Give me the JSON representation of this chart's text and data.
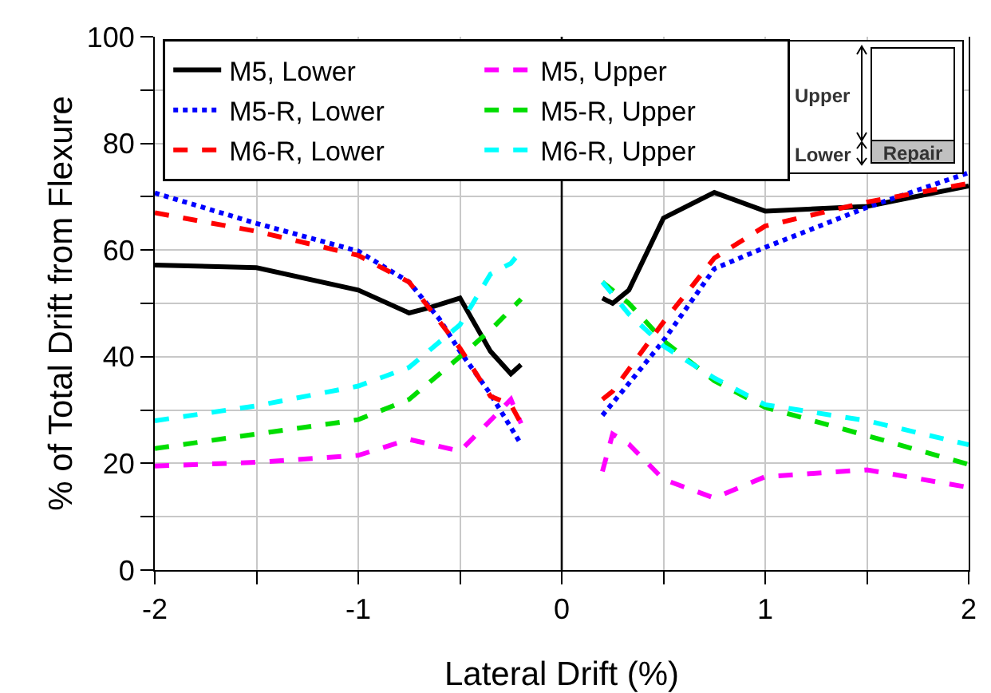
{
  "chart_data": {
    "type": "line",
    "xlabel": "Lateral Drift (%)",
    "ylabel": "% of Total Drift from Flexure",
    "xlim": [
      -2,
      2
    ],
    "xticks": [
      -2,
      {
        "value": -1.5,
        "label": null
      },
      -1,
      {
        "value": -0.5,
        "label": null
      },
      0,
      {
        "value": 0.5,
        "label": null
      },
      1,
      {
        "value": 1.5,
        "label": null
      },
      2
    ],
    "ylim": [
      0,
      100
    ],
    "yticks": [
      0,
      {
        "value": 10,
        "label": null
      },
      20,
      {
        "value": 30,
        "label": null
      },
      40,
      {
        "value": 50,
        "label": null
      },
      60,
      {
        "value": 70,
        "label": null
      },
      80,
      {
        "value": 90,
        "label": null
      },
      100
    ],
    "grid": true,
    "legend": "top left",
    "marker": "none",
    "ref_lines": [
      {
        "axis": "x",
        "value": 0,
        "color": "#000000"
      }
    ],
    "annotations": [
      "Upper",
      "Lower",
      "Repair"
    ],
    "series": [
      {
        "name": "M5, Lower",
        "color": "#000000",
        "line_style": "solid",
        "x": [
          -2,
          -1.5,
          -1,
          -0.75,
          -0.65,
          -0.5,
          -0.35,
          -0.25,
          -0.2,
          0,
          0.2,
          0.25,
          0.33,
          0.5,
          0.75,
          1,
          1.5,
          2
        ],
        "values": [
          57.2,
          56.7,
          52.5,
          48.2,
          49.2,
          51,
          41,
          36.8,
          38.5,
          null,
          51,
          50,
          52.5,
          66,
          70.8,
          67.3,
          68.2,
          72
        ]
      },
      {
        "name": "M5, Upper",
        "color": "#ff00ff",
        "line_style": "dashed",
        "x": [
          -2,
          -1.5,
          -1,
          -0.75,
          -0.5,
          -0.3,
          -0.25,
          -0.2,
          0,
          0.2,
          0.25,
          0.33,
          0.5,
          0.75,
          1,
          1.5,
          2
        ],
        "values": [
          19.5,
          20.2,
          21.5,
          24.5,
          22.3,
          30,
          32,
          27.5,
          null,
          18.5,
          25.5,
          23.6,
          17,
          13.5,
          17.5,
          18.8,
          15.5
        ]
      },
      {
        "name": "M5-R, Lower",
        "color": "#0000ff",
        "line_style": "dotted",
        "x": [
          -2,
          -1.5,
          -1,
          -0.75,
          -0.6,
          -0.5,
          -0.35,
          -0.2,
          0,
          0.2,
          0.33,
          0.5,
          0.75,
          1,
          1.5,
          2
        ],
        "values": [
          70.7,
          65,
          59.8,
          54,
          47,
          41,
          33,
          23.6,
          null,
          29,
          35,
          43,
          56.5,
          60.5,
          68,
          74.5
        ]
      },
      {
        "name": "M5-R, Upper",
        "color": "#00dd00",
        "line_style": "dashed",
        "x": [
          -2,
          -1.5,
          -1,
          -0.75,
          -0.5,
          -0.35,
          -0.2,
          0,
          0.2,
          0.33,
          0.5,
          0.75,
          1,
          1.5,
          2
        ],
        "values": [
          22.8,
          25.5,
          28.2,
          32,
          40,
          45,
          50.8,
          null,
          54,
          50,
          43,
          35.5,
          30.5,
          25.2,
          19.8
        ]
      },
      {
        "name": "M6-R, Lower",
        "color": "#ff0000",
        "line_style": "dashed",
        "x": [
          -2,
          -1.5,
          -1,
          -0.75,
          -0.5,
          -0.35,
          -0.25,
          -0.2,
          0,
          0.2,
          0.25,
          0.5,
          0.75,
          1,
          1.5,
          2
        ],
        "values": [
          67,
          63.5,
          59,
          54,
          41.6,
          32.6,
          31,
          27.5,
          null,
          32,
          33.5,
          46.5,
          58.5,
          64.5,
          69,
          72.5
        ]
      },
      {
        "name": "M6-R, Upper",
        "color": "#00ffff",
        "line_style": "dashed",
        "x": [
          -2,
          -1.5,
          -1,
          -0.75,
          -0.5,
          -0.35,
          -0.25,
          -0.2,
          0,
          0.2,
          0.33,
          0.5,
          0.75,
          1,
          1.5,
          2
        ],
        "values": [
          28,
          30.8,
          34.5,
          38,
          46,
          55.5,
          57.5,
          59.8,
          null,
          54,
          48,
          42,
          36,
          31,
          28,
          23.5
        ]
      }
    ]
  }
}
